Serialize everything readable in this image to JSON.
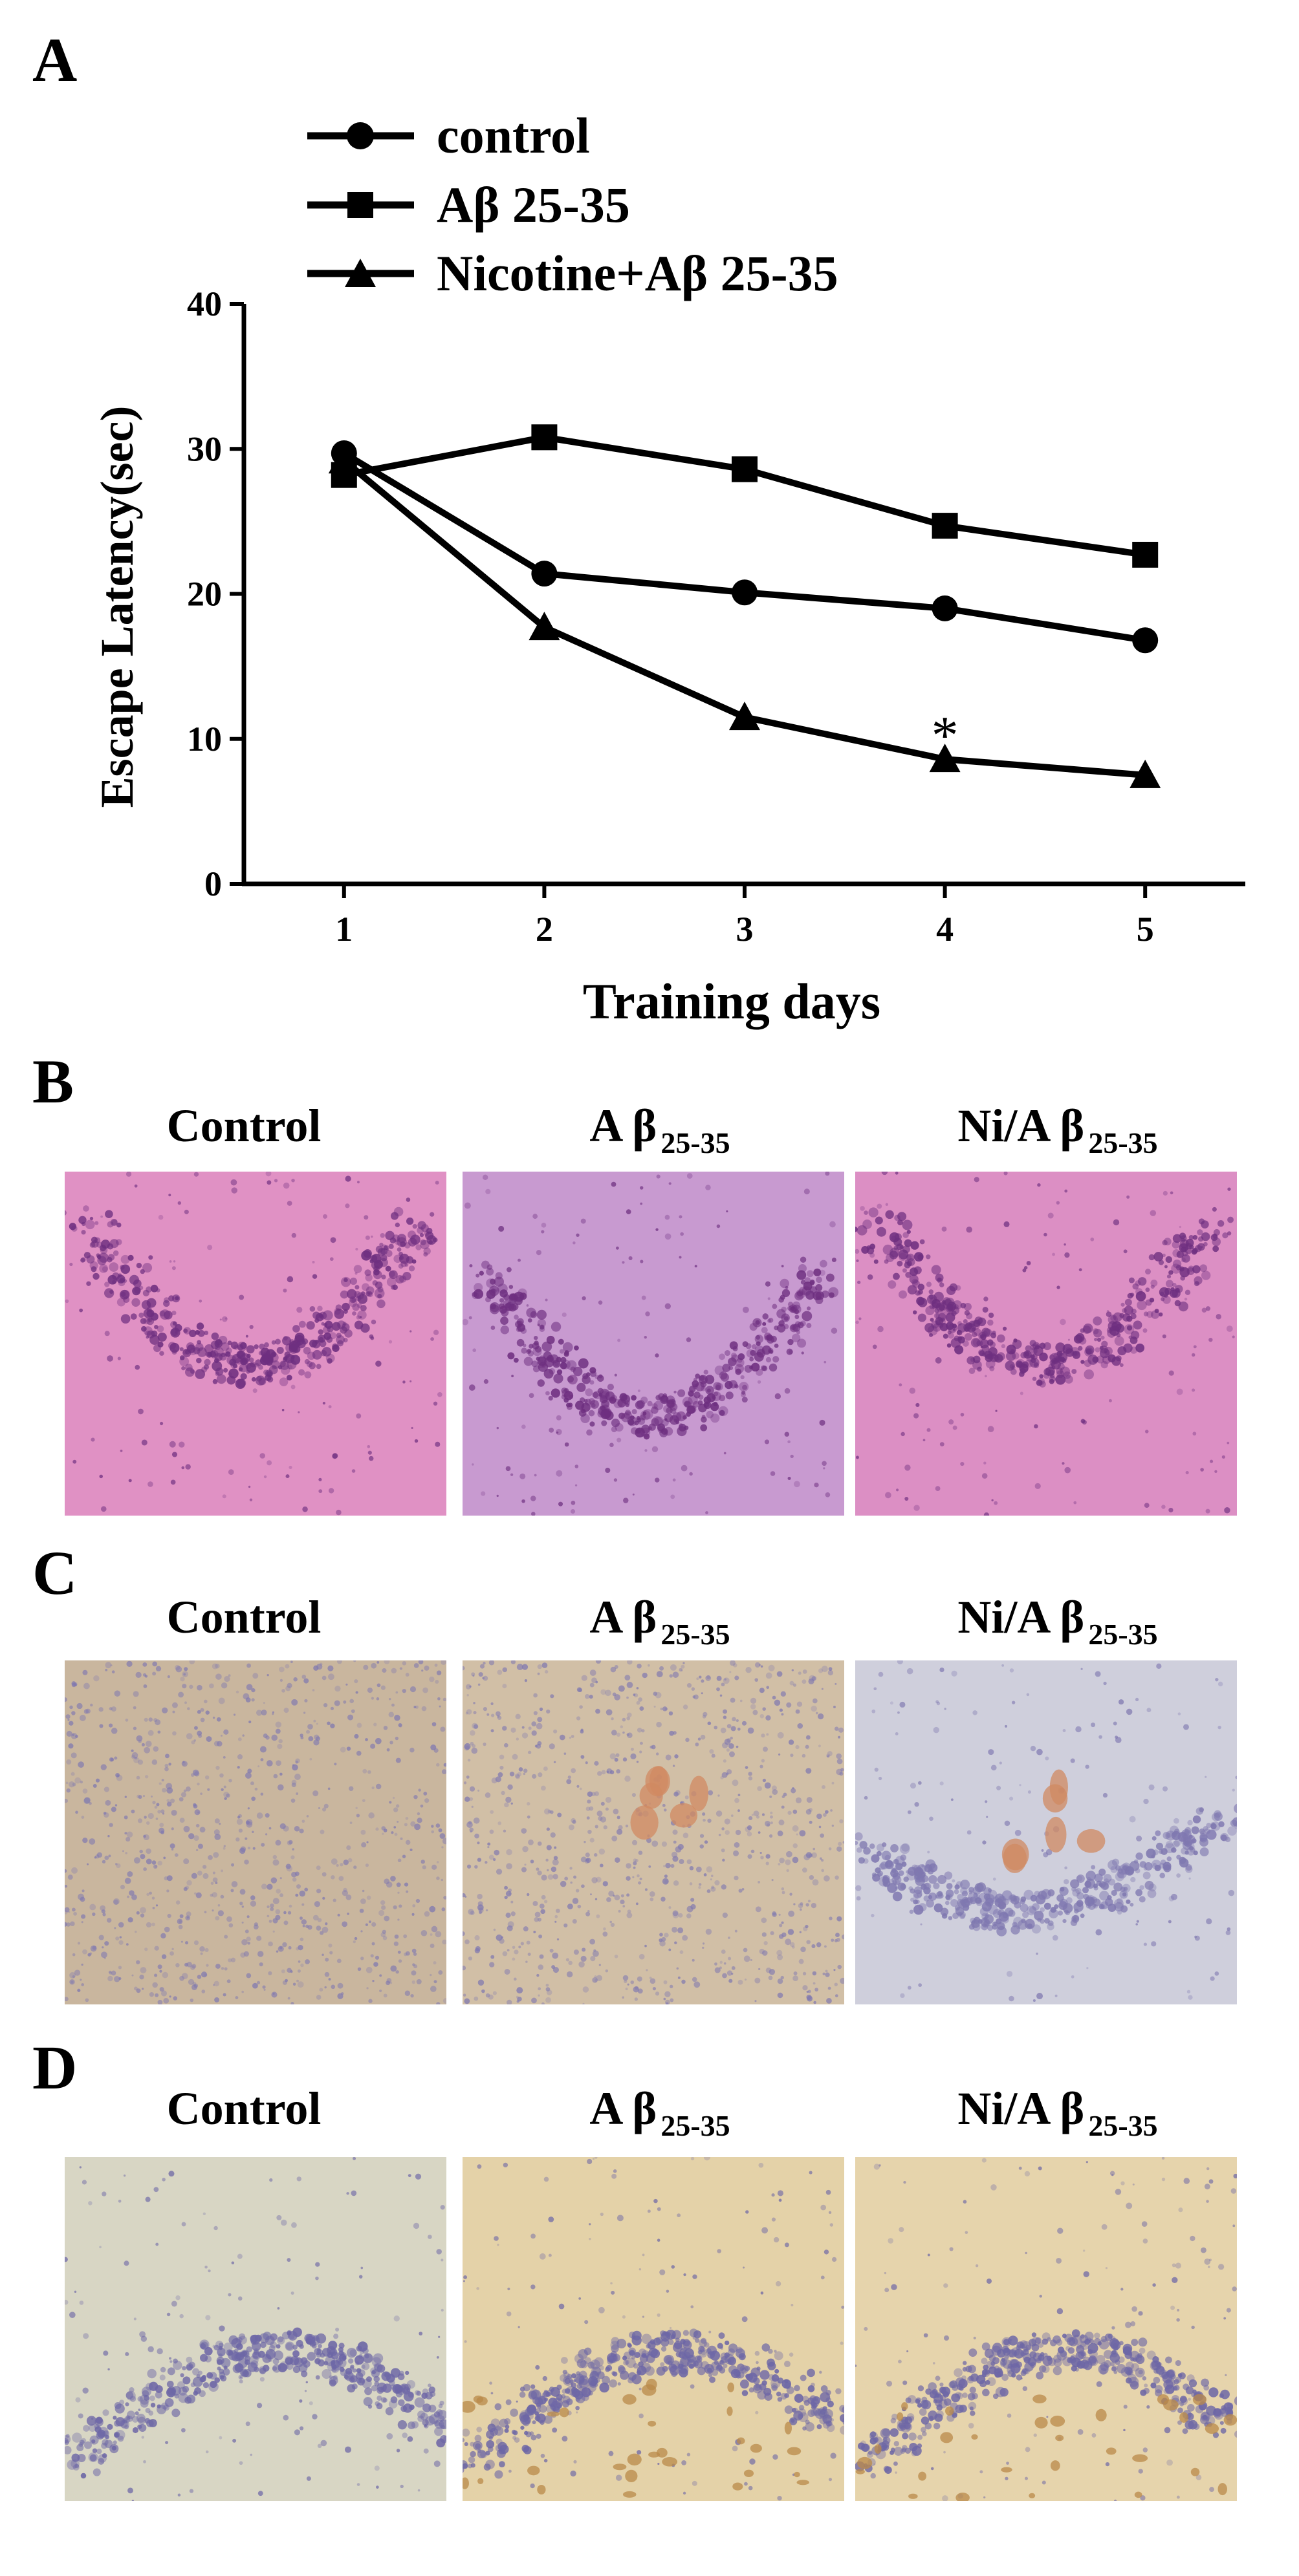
{
  "figure": {
    "panels": {
      "A": "A",
      "B": "B",
      "C": "C",
      "D": "D"
    },
    "column_titles": [
      {
        "main": "Control",
        "sub": ""
      },
      {
        "main": "A β",
        "sub": "25-35"
      },
      {
        "main": "Ni/A β",
        "sub": "25-35"
      }
    ],
    "micrograph_styles": {
      "B": {
        "stain": "H&E",
        "colors": [
          "#e091c4",
          "#c89ad0",
          "#dc8fc4"
        ],
        "cell_color": "#6e2f80"
      },
      "C": {
        "colors": [
          "#c9b69e",
          "#d1bfa6",
          "#cfcfdc"
        ],
        "cell_color": "#7f78b0",
        "highlight_color": "#d08a62"
      },
      "D": {
        "colors": [
          "#d8d6c4",
          "#e4d2a8",
          "#e6d4ac"
        ],
        "cell_color": "#6d67a6",
        "highlight_color": "#b98a4a"
      }
    }
  },
  "chart_data": {
    "type": "line",
    "title": "",
    "xlabel": "Training days",
    "ylabel": "Escape Latency(sec)",
    "x": [
      1,
      2,
      3,
      4,
      5
    ],
    "x_tick_labels": [
      "1",
      "2",
      "3",
      "4",
      "5"
    ],
    "y_tick_labels": [
      "0",
      "10",
      "20",
      "30",
      "40"
    ],
    "ylim": [
      0,
      40
    ],
    "xlim": [
      0.5,
      5.5
    ],
    "grid": false,
    "legend_position": "top-left",
    "series": [
      {
        "name": "control",
        "marker": "circle",
        "values": [
          29.7,
          21.4,
          20.1,
          19.0,
          16.8
        ]
      },
      {
        "name": "Aβ 25-35",
        "marker": "square",
        "values": [
          28.2,
          30.8,
          28.6,
          24.7,
          22.7
        ]
      },
      {
        "name": "Nicotine+Aβ 25-35",
        "marker": "triangle",
        "values": [
          29.2,
          17.7,
          11.5,
          8.6,
          7.5
        ]
      }
    ],
    "annotations": [
      {
        "text": "*",
        "x": 4,
        "y": 10.8
      }
    ],
    "line_color": "#000000"
  }
}
